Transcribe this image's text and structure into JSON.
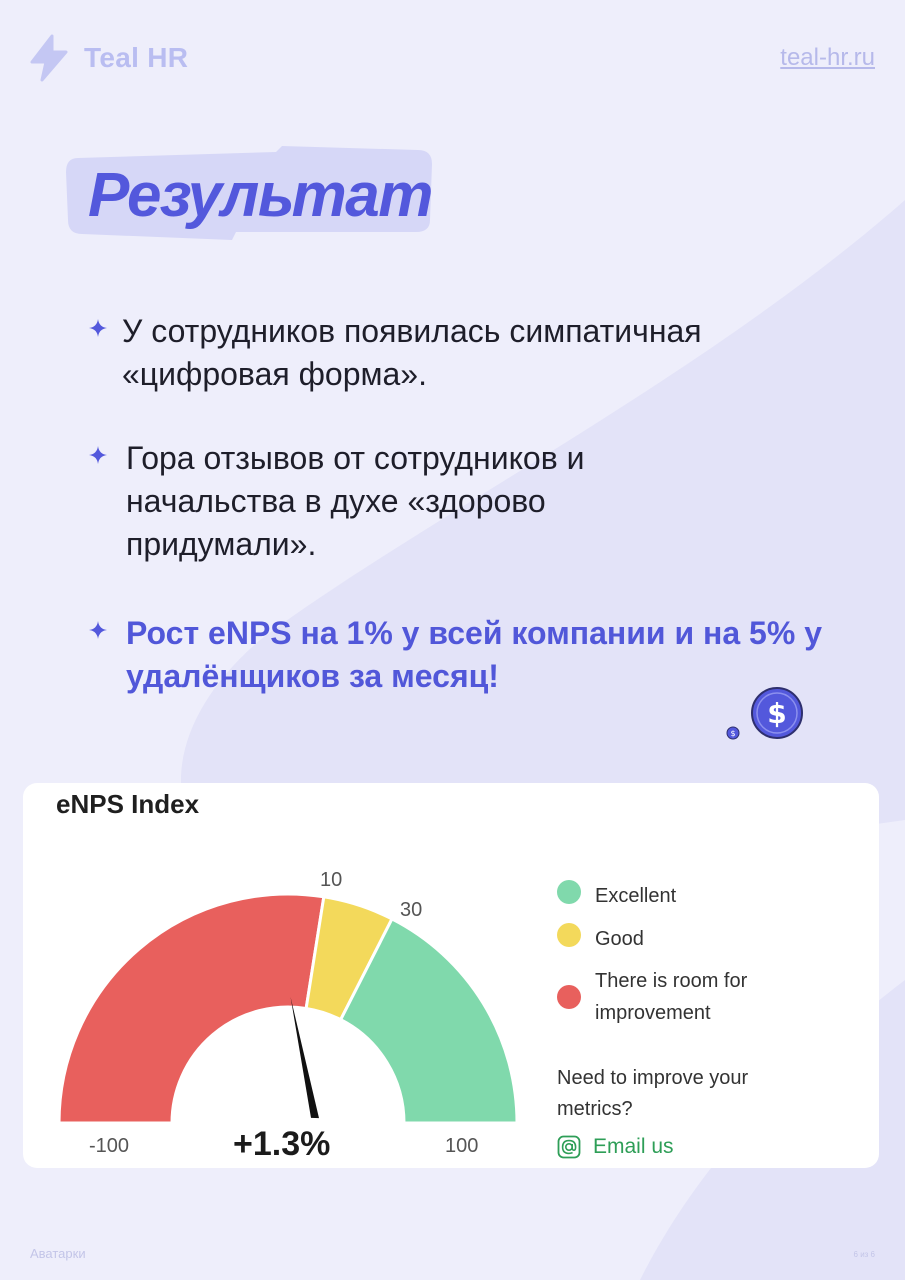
{
  "brand": {
    "name": "Teal HR",
    "site": "teal-hr.ru"
  },
  "heading": "Результат",
  "bullets": [
    {
      "text": "У сотрудников появилась симпатичная «цифровая форма»."
    },
    {
      "text": "Гора отзывов от сотрудников и начальства в духе «здорово придумали»."
    },
    {
      "text": "Рост eNPS на 1% у всей компании и на 5% у удалёнщиков за месяц!"
    }
  ],
  "enps_card": {
    "title": "eNPS Index",
    "value_label": "+1.3%",
    "legend": [
      {
        "label": "Excellent",
        "color": "#80d9ac"
      },
      {
        "label": "Good",
        "color": "#f3d95b"
      },
      {
        "label": "There is room for improvement",
        "color": "#e8605d"
      }
    ],
    "help_text": "Need to improve your metrics?",
    "email_label": "Email us",
    "icons": {
      "email": "at-sign-icon"
    }
  },
  "chart_data": {
    "type": "gauge",
    "title": "eNPS Index",
    "range": [
      -100,
      100
    ],
    "tick_labels": [
      "-100",
      "10",
      "30",
      "100"
    ],
    "segments": [
      {
        "from": -100,
        "to": 10,
        "color": "#e8605d",
        "legend": "There is room for improvement"
      },
      {
        "from": 10,
        "to": 30,
        "color": "#f3d95b",
        "legend": "Good"
      },
      {
        "from": 30,
        "to": 100,
        "color": "#80d9ac",
        "legend": "Excellent"
      }
    ],
    "value": 1.3,
    "value_label": "+1.3%"
  },
  "footer": {
    "left": "Аватарки",
    "right": "6 из 6"
  },
  "colors": {
    "accent": "#5358dc",
    "background": "#eeeefb",
    "label_bg": "#d6d7f7"
  }
}
